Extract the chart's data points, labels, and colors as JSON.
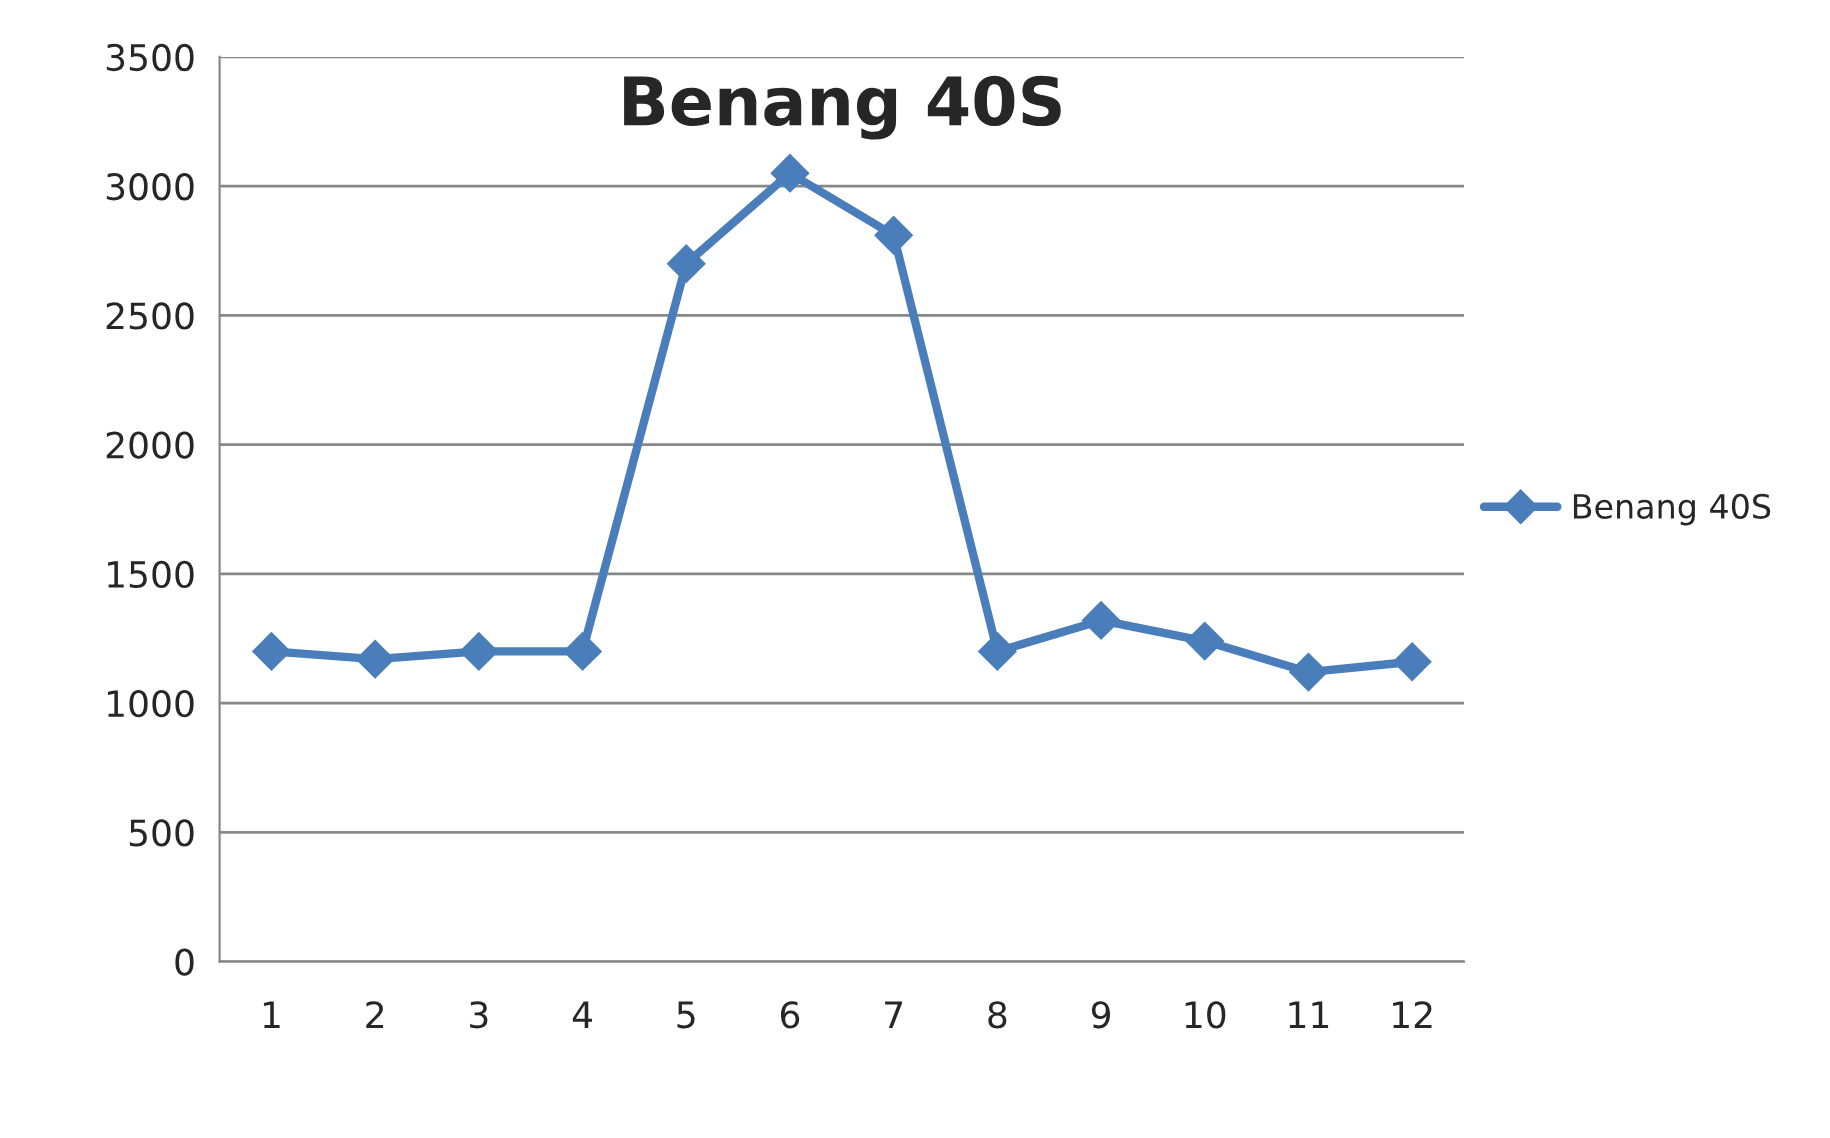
{
  "chart_data": {
    "type": "line",
    "title": "Benang 40S",
    "categories": [
      "1",
      "2",
      "3",
      "4",
      "5",
      "6",
      "7",
      "8",
      "9",
      "10",
      "11",
      "12"
    ],
    "series": [
      {
        "name": "Benang 40S",
        "color": "#4a7ebb",
        "values": [
          1200,
          1170,
          1200,
          1200,
          2700,
          3050,
          2810,
          1200,
          1320,
          1240,
          1120,
          1160
        ]
      }
    ],
    "ylim": [
      0,
      3500
    ],
    "yticks": [
      0,
      500,
      1000,
      1500,
      2000,
      2500,
      3000,
      3500
    ],
    "grid": "y",
    "legend": "right",
    "marker": "diamond",
    "line_style": "solid"
  }
}
